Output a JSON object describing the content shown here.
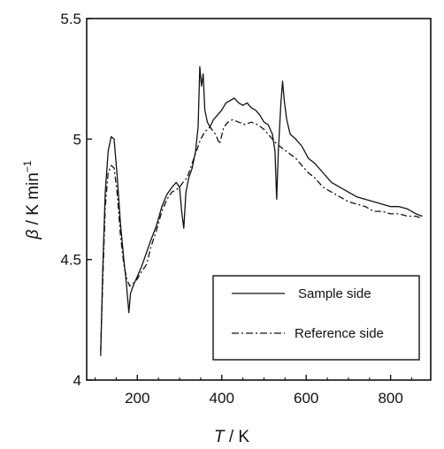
{
  "chart_data": {
    "type": "line",
    "xlabel": "T / K",
    "xlabel_italic": "T",
    "xlabel_unit": " / K",
    "ylabel": "β / K min⁻¹",
    "ylabel_italic": "β",
    "ylabel_unit": " / K min",
    "ylabel_sup": "−1",
    "xlim": [
      80,
      895
    ],
    "ylim": [
      4.0,
      5.5
    ],
    "xticks": [
      200,
      400,
      600,
      800
    ],
    "xtick_labels": [
      "200",
      "400",
      "600",
      "800"
    ],
    "yticks": [
      4.0,
      4.5,
      5.0,
      5.5
    ],
    "ytick_labels": [
      "4",
      "4.5",
      "5",
      "5.5"
    ],
    "grid": false,
    "legend_position": "lower-right",
    "series": [
      {
        "name": "Sample side",
        "style": "solid",
        "color": "#111111",
        "points": [
          [
            113,
            4.1
          ],
          [
            118,
            4.45
          ],
          [
            124,
            4.78
          ],
          [
            131,
            4.95
          ],
          [
            138,
            5.01
          ],
          [
            145,
            5.0
          ],
          [
            152,
            4.85
          ],
          [
            160,
            4.65
          ],
          [
            168,
            4.5
          ],
          [
            174,
            4.4
          ],
          [
            180,
            4.28
          ],
          [
            184,
            4.36
          ],
          [
            192,
            4.4
          ],
          [
            200,
            4.43
          ],
          [
            210,
            4.47
          ],
          [
            220,
            4.52
          ],
          [
            232,
            4.58
          ],
          [
            245,
            4.64
          ],
          [
            258,
            4.72
          ],
          [
            270,
            4.77
          ],
          [
            282,
            4.8
          ],
          [
            292,
            4.82
          ],
          [
            300,
            4.8
          ],
          [
            305,
            4.7
          ],
          [
            310,
            4.63
          ],
          [
            315,
            4.78
          ],
          [
            322,
            4.84
          ],
          [
            330,
            4.88
          ],
          [
            338,
            4.95
          ],
          [
            344,
            5.05
          ],
          [
            348,
            5.3
          ],
          [
            352,
            5.22
          ],
          [
            356,
            5.27
          ],
          [
            360,
            5.12
          ],
          [
            366,
            5.07
          ],
          [
            372,
            5.05
          ],
          [
            380,
            5.08
          ],
          [
            390,
            5.1
          ],
          [
            400,
            5.12
          ],
          [
            410,
            5.15
          ],
          [
            420,
            5.16
          ],
          [
            430,
            5.17
          ],
          [
            440,
            5.15
          ],
          [
            450,
            5.14
          ],
          [
            460,
            5.15
          ],
          [
            470,
            5.13
          ],
          [
            480,
            5.12
          ],
          [
            490,
            5.1
          ],
          [
            500,
            5.07
          ],
          [
            510,
            5.06
          ],
          [
            520,
            5.02
          ],
          [
            526,
            4.95
          ],
          [
            530,
            4.75
          ],
          [
            534,
            4.95
          ],
          [
            540,
            5.15
          ],
          [
            544,
            5.24
          ],
          [
            548,
            5.16
          ],
          [
            554,
            5.08
          ],
          [
            562,
            5.02
          ],
          [
            575,
            5.0
          ],
          [
            590,
            4.97
          ],
          [
            605,
            4.92
          ],
          [
            620,
            4.9
          ],
          [
            640,
            4.86
          ],
          [
            660,
            4.82
          ],
          [
            680,
            4.8
          ],
          [
            700,
            4.78
          ],
          [
            720,
            4.76
          ],
          [
            740,
            4.75
          ],
          [
            760,
            4.74
          ],
          [
            780,
            4.73
          ],
          [
            800,
            4.72
          ],
          [
            820,
            4.72
          ],
          [
            840,
            4.71
          ],
          [
            860,
            4.69
          ],
          [
            875,
            4.68
          ]
        ]
      },
      {
        "name": "Reference side",
        "style": "dashdot",
        "color": "#111111",
        "points": [
          [
            113,
            4.12
          ],
          [
            118,
            4.4
          ],
          [
            124,
            4.72
          ],
          [
            131,
            4.86
          ],
          [
            138,
            4.89
          ],
          [
            145,
            4.88
          ],
          [
            152,
            4.78
          ],
          [
            160,
            4.6
          ],
          [
            168,
            4.48
          ],
          [
            175,
            4.42
          ],
          [
            182,
            4.39
          ],
          [
            190,
            4.4
          ],
          [
            200,
            4.42
          ],
          [
            210,
            4.45
          ],
          [
            222,
            4.48
          ],
          [
            232,
            4.55
          ],
          [
            245,
            4.62
          ],
          [
            258,
            4.7
          ],
          [
            270,
            4.75
          ],
          [
            282,
            4.78
          ],
          [
            292,
            4.79
          ],
          [
            300,
            4.8
          ],
          [
            308,
            4.82
          ],
          [
            318,
            4.84
          ],
          [
            330,
            4.9
          ],
          [
            340,
            4.95
          ],
          [
            350,
            5.0
          ],
          [
            360,
            5.03
          ],
          [
            372,
            5.05
          ],
          [
            385,
            5.02
          ],
          [
            395,
            4.98
          ],
          [
            405,
            5.05
          ],
          [
            415,
            5.07
          ],
          [
            425,
            5.08
          ],
          [
            440,
            5.07
          ],
          [
            455,
            5.06
          ],
          [
            470,
            5.07
          ],
          [
            485,
            5.06
          ],
          [
            500,
            5.04
          ],
          [
            515,
            5.01
          ],
          [
            530,
            4.98
          ],
          [
            545,
            4.96
          ],
          [
            560,
            4.94
          ],
          [
            575,
            4.92
          ],
          [
            590,
            4.89
          ],
          [
            605,
            4.86
          ],
          [
            620,
            4.84
          ],
          [
            640,
            4.8
          ],
          [
            660,
            4.78
          ],
          [
            680,
            4.76
          ],
          [
            700,
            4.74
          ],
          [
            720,
            4.73
          ],
          [
            740,
            4.72
          ],
          [
            760,
            4.7
          ],
          [
            780,
            4.7
          ],
          [
            800,
            4.69
          ],
          [
            820,
            4.69
          ],
          [
            840,
            4.68
          ],
          [
            860,
            4.68
          ],
          [
            875,
            4.67
          ]
        ]
      }
    ]
  }
}
